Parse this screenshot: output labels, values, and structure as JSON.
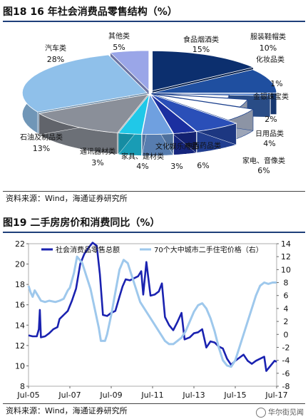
{
  "fig18": {
    "title": "图18 16 年社会消费品零售结构（%）",
    "source": "资料来源：Wind，海通证券研究所"
  },
  "fig19": {
    "title": "图19 二手房房价和消费同比（%）",
    "source": "资料来源：Wind，海通证券研究所"
  },
  "watermark": "华尔街见闻",
  "colors": {
    "rule": "#1f3f7a",
    "retail_line": "#1a22b0",
    "housing_line": "#9ec8ec"
  },
  "chart_data": [
    {
      "type": "pie",
      "style": "3d-exploded",
      "title": "16 年社会消费品零售结构（%）",
      "slices": [
        {
          "label": "食品烟酒类",
          "value": 15,
          "value_label": "15%",
          "color": "#0c2f6e"
        },
        {
          "label": "服装鞋帽类",
          "value": 10,
          "value_label": "10%",
          "color": "#1f4fa0"
        },
        {
          "label": "化妆品类",
          "value": 1,
          "value_label": "1%",
          "color": "#3a6cc0"
        },
        {
          "label": "金银珠宝类",
          "value": 2,
          "value_label": "2%",
          "color": "#ffffff"
        },
        {
          "label": "日用品类",
          "value": 4,
          "value_label": "4%",
          "color": "#ffffff"
        },
        {
          "label": "家电、音像类",
          "value": 6,
          "value_label": "6%",
          "color": "#ffffff"
        },
        {
          "label": "中西药品类",
          "value": 6,
          "value_label": "6%",
          "color": "#2a4fb8"
        },
        {
          "label": "文化娱乐用品",
          "value": 3,
          "value_label": "3%",
          "color": "#1b2fa0"
        },
        {
          "label": "家具、建材类",
          "value": 4,
          "value_label": "4%",
          "color": "#6fa0e0"
        },
        {
          "label": "通讯器材类",
          "value": 3,
          "value_label": "3%",
          "color": "#20c8e8"
        },
        {
          "label": "石油及制品类",
          "value": 13,
          "value_label": "13%",
          "color": "#8a8f99"
        },
        {
          "label": "汽车类",
          "value": 28,
          "value_label": "28%",
          "color": "#8fc0ea"
        },
        {
          "label": "其他类",
          "value": 5,
          "value_label": "5%",
          "color": "#9aa6e8"
        }
      ]
    },
    {
      "type": "line",
      "title": "二手房房价和消费同比（%）",
      "x_ticks": [
        "Jul-05",
        "Jul-07",
        "Jul-09",
        "Jul-11",
        "Jul-13",
        "Jul-15",
        "Jul-17"
      ],
      "y_left": {
        "min": 8,
        "max": 22,
        "ticks": [
          8,
          10,
          12,
          14,
          16,
          18,
          20,
          22
        ]
      },
      "y_right": {
        "min": -8,
        "max": 14,
        "ticks": [
          -8,
          -6,
          -4,
          -2,
          0,
          2,
          4,
          6,
          8,
          10,
          12,
          14
        ]
      },
      "series": [
        {
          "name": "社会消费品零售总额",
          "axis": "left",
          "color": "#1a22b0",
          "points": [
            [
              2005.5,
              13.0
            ],
            [
              2005.7,
              12.9
            ],
            [
              2005.9,
              12.9
            ],
            [
              2006.0,
              13.6
            ],
            [
              2006.05,
              15.5
            ],
            [
              2006.1,
              12.8
            ],
            [
              2006.3,
              12.9
            ],
            [
              2006.5,
              13.2
            ],
            [
              2006.7,
              13.6
            ],
            [
              2006.9,
              13.8
            ],
            [
              2007.0,
              14.6
            ],
            [
              2007.2,
              15.0
            ],
            [
              2007.4,
              15.4
            ],
            [
              2007.6,
              16.4
            ],
            [
              2007.8,
              17.6
            ],
            [
              2008.0,
              20.0
            ],
            [
              2008.2,
              21.0
            ],
            [
              2008.4,
              21.6
            ],
            [
              2008.6,
              22.1
            ],
            [
              2008.8,
              21.8
            ],
            [
              2008.95,
              19.0
            ],
            [
              2009.1,
              15.0
            ],
            [
              2009.3,
              14.9
            ],
            [
              2009.5,
              15.2
            ],
            [
              2009.7,
              15.4
            ],
            [
              2009.9,
              16.8
            ],
            [
              2010.05,
              17.8
            ],
            [
              2010.2,
              18.5
            ],
            [
              2010.4,
              18.4
            ],
            [
              2010.6,
              18.6
            ],
            [
              2010.8,
              18.8
            ],
            [
              2010.95,
              19.3
            ],
            [
              2011.05,
              17.0
            ],
            [
              2011.2,
              20.2
            ],
            [
              2011.4,
              16.9
            ],
            [
              2011.6,
              17.0
            ],
            [
              2011.8,
              17.3
            ],
            [
              2011.95,
              18.1
            ],
            [
              2012.1,
              14.8
            ],
            [
              2012.3,
              14.0
            ],
            [
              2012.5,
              13.5
            ],
            [
              2012.7,
              14.3
            ],
            [
              2012.9,
              15.2
            ],
            [
              2013.05,
              12.6
            ],
            [
              2013.3,
              12.8
            ],
            [
              2013.5,
              13.2
            ],
            [
              2013.7,
              13.3
            ],
            [
              2013.9,
              13.6
            ],
            [
              2014.1,
              11.8
            ],
            [
              2014.3,
              12.4
            ],
            [
              2014.5,
              12.3
            ],
            [
              2014.7,
              11.9
            ],
            [
              2014.9,
              11.7
            ],
            [
              2015.1,
              10.7
            ],
            [
              2015.3,
              10.1
            ],
            [
              2015.5,
              10.5
            ],
            [
              2015.7,
              10.8
            ],
            [
              2015.9,
              11.1
            ],
            [
              2016.1,
              10.5
            ],
            [
              2016.3,
              10.2
            ],
            [
              2016.5,
              10.5
            ],
            [
              2016.7,
              10.7
            ],
            [
              2016.9,
              10.9
            ],
            [
              2017.0,
              9.5
            ],
            [
              2017.2,
              10.0
            ],
            [
              2017.4,
              10.5
            ],
            [
              2017.5,
              10.4
            ]
          ]
        },
        {
          "name": "70个大中城市二手住宅价格（右）",
          "axis": "right",
          "color": "#9ec8ec",
          "points": [
            [
              2005.5,
              7.5
            ],
            [
              2005.6,
              6.5
            ],
            [
              2005.7,
              5.8
            ],
            [
              2005.8,
              6.8
            ],
            [
              2005.95,
              6.0
            ],
            [
              2006.1,
              5.2
            ],
            [
              2006.3,
              5.0
            ],
            [
              2006.5,
              5.2
            ],
            [
              2006.8,
              5.0
            ],
            [
              2007.0,
              5.2
            ],
            [
              2007.2,
              5.5
            ],
            [
              2007.4,
              6.8
            ],
            [
              2007.5,
              7.2
            ],
            [
              2007.7,
              9.5
            ],
            [
              2007.85,
              12.0
            ],
            [
              2007.95,
              11.6
            ],
            [
              2008.1,
              11.0
            ],
            [
              2008.3,
              9.0
            ],
            [
              2008.5,
              7.0
            ],
            [
              2008.7,
              4.0
            ],
            [
              2008.9,
              1.0
            ],
            [
              2009.0,
              -1.0
            ],
            [
              2009.2,
              -1.0
            ],
            [
              2009.3,
              0.0
            ],
            [
              2009.5,
              3.0
            ],
            [
              2009.7,
              6.5
            ],
            [
              2009.9,
              10.0
            ],
            [
              2010.1,
              11.5
            ],
            [
              2010.3,
              11.0
            ],
            [
              2010.5,
              9.0
            ],
            [
              2010.7,
              7.0
            ],
            [
              2010.9,
              5.0
            ],
            [
              2011.1,
              4.0
            ],
            [
              2011.3,
              3.0
            ],
            [
              2011.5,
              2.0
            ],
            [
              2011.7,
              1.0
            ],
            [
              2011.9,
              0.0
            ],
            [
              2012.1,
              -1.0
            ],
            [
              2012.3,
              -1.5
            ],
            [
              2012.5,
              -1.5
            ],
            [
              2012.7,
              -1.0
            ],
            [
              2012.9,
              -0.5
            ],
            [
              2013.1,
              0.5
            ],
            [
              2013.3,
              2.0
            ],
            [
              2013.5,
              3.5
            ],
            [
              2013.7,
              4.5
            ],
            [
              2013.9,
              4.8
            ],
            [
              2014.1,
              4.0
            ],
            [
              2014.3,
              2.5
            ],
            [
              2014.5,
              0.5
            ],
            [
              2014.7,
              -2.0
            ],
            [
              2014.9,
              -4.0
            ],
            [
              2015.1,
              -4.8
            ],
            [
              2015.3,
              -5.0
            ],
            [
              2015.5,
              -4.0
            ],
            [
              2015.7,
              -2.0
            ],
            [
              2015.9,
              0.0
            ],
            [
              2016.1,
              2.0
            ],
            [
              2016.3,
              4.0
            ],
            [
              2016.5,
              6.0
            ],
            [
              2016.7,
              7.5
            ],
            [
              2016.9,
              8.0
            ],
            [
              2017.1,
              7.8
            ],
            [
              2017.3,
              8.0
            ],
            [
              2017.5,
              8.0
            ]
          ]
        }
      ]
    }
  ]
}
